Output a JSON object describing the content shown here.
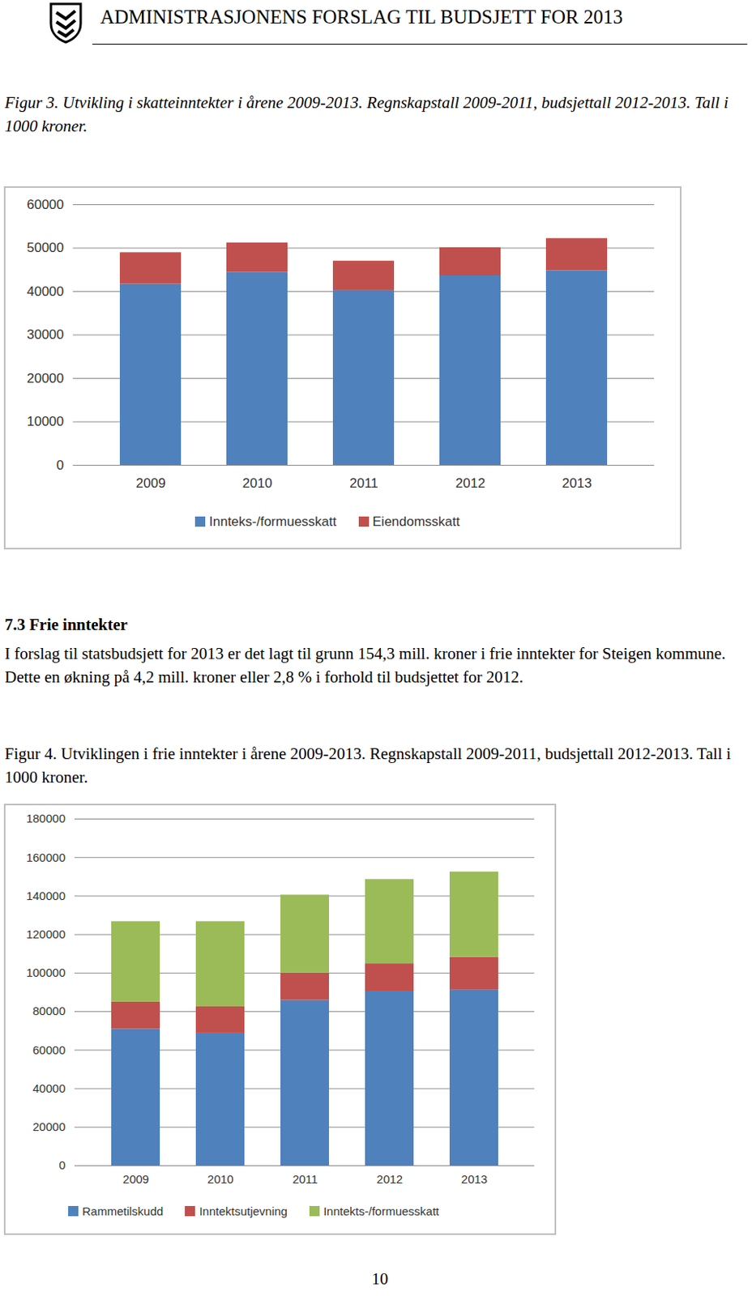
{
  "document": {
    "header": "ADMINISTRASJONENS FORSLAG TIL BUDSJETT FOR 2013",
    "heading": "7.3 Frie inntekter",
    "paragraph": "I forslag til statsbudsjett for 2013 er det lagt til grunn 154,3 mill. kroner i frie inntekter for Steigen kommune. Dette en økning på 4,2 mill. kroner eller 2,8 % i forhold til budsjettet for 2012.",
    "page_number": "10"
  },
  "chart_data": [
    {
      "type": "bar",
      "title": "Figur 3. Utvikling i skatteinntekter i årene 2009-2013. Regnskapstall 2009-2011, budsjettall 2012-2013. Tall i 1000 kroner.",
      "categories": [
        "2009",
        "2010",
        "2011",
        "2012",
        "2013"
      ],
      "series": [
        {
          "name": "Innteks-/formuesskatt",
          "color": "#4f81bd",
          "values": [
            41700,
            44400,
            40200,
            43600,
            44800
          ]
        },
        {
          "name": "Eiendomsskatt",
          "color": "#c0504d",
          "values": [
            7250,
            6800,
            6800,
            6500,
            7400
          ]
        }
      ],
      "stacked": true,
      "ylim": [
        0,
        60000
      ],
      "yticks": [
        0,
        10000,
        20000,
        30000,
        40000,
        50000,
        60000
      ],
      "grid": true,
      "legend": "bottom"
    },
    {
      "type": "bar",
      "title": "Figur 4. Utviklingen i frie inntekter i årene 2009-2013. Regnskapstall 2009-2011, budsjettall 2012-2013. Tall i 1000 kroner.",
      "categories": [
        "2009",
        "2010",
        "2011",
        "2012",
        "2013"
      ],
      "series": [
        {
          "name": "Rammetilskudd",
          "color": "#4f81bd",
          "values": [
            70900,
            68700,
            85900,
            90600,
            91100
          ]
        },
        {
          "name": "Inntektsutjevning",
          "color": "#c0504d",
          "values": [
            14100,
            13800,
            14200,
            14200,
            17100
          ]
        },
        {
          "name": "Inntekts-/formuesskatt",
          "color": "#9bbb59",
          "values": [
            41700,
            44200,
            40400,
            43800,
            44300
          ]
        }
      ],
      "stacked": true,
      "ylim": [
        0,
        180000
      ],
      "yticks": [
        0,
        20000,
        40000,
        60000,
        80000,
        100000,
        120000,
        140000,
        160000,
        180000
      ],
      "grid": true,
      "legend": "bottom"
    }
  ]
}
